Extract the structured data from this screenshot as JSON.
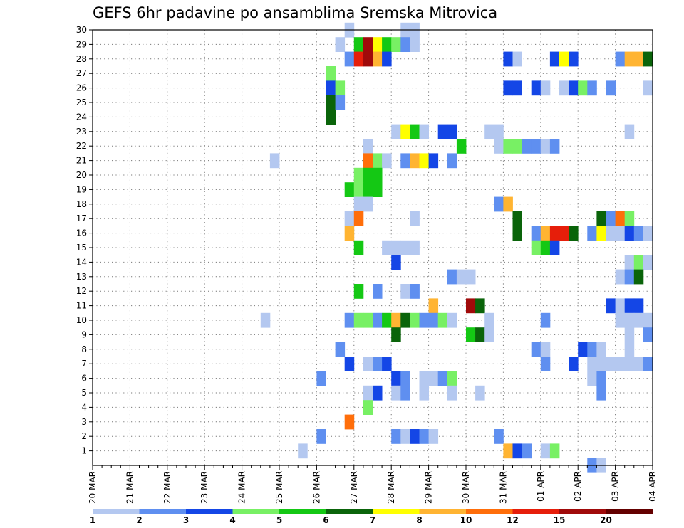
{
  "chart_data": {
    "type": "heatmap",
    "title": "GEFS 6hr padavine po ansamblima Sremska Mitrovica",
    "xlabel": "",
    "ylabel": "",
    "x_ticks": [
      "20 MAR",
      "21 MAR",
      "22 MAR",
      "23 MAR",
      "24 MAR",
      "25 MAR",
      "26 MAR",
      "27 MAR",
      "28 MAR",
      "29 MAR",
      "30 MAR",
      "31 MAR",
      "01 APR",
      "02 APR",
      "03 APR",
      "04 APR"
    ],
    "y_ticks": [
      "1",
      "2",
      "3",
      "4",
      "5",
      "6",
      "7",
      "8",
      "9",
      "10",
      "11",
      "12",
      "13",
      "14",
      "15",
      "16",
      "17",
      "18",
      "19",
      "20",
      "21",
      "22",
      "23",
      "24",
      "25",
      "26",
      "27",
      "28",
      "29",
      "30"
    ],
    "xlim_days": [
      0,
      15
    ],
    "ylim_members": [
      0,
      30
    ],
    "step_hours": 6,
    "grid": true,
    "legend": {
      "placement": "bottom",
      "labels": [
        "1",
        "2",
        "3",
        "4",
        "5",
        "6",
        "7",
        "8",
        "10",
        "12",
        "15",
        "20"
      ],
      "colors": [
        "#b4c8f0",
        "#5f8ff0",
        "#1446e6",
        "#78f064",
        "#14c814",
        "#0a640a",
        "#ffff00",
        "#ffb432",
        "#ff6e0a",
        "#e61e0a",
        "#a00a0a",
        "#640000"
      ]
    },
    "value_levels": [
      1,
      2,
      3,
      4,
      5,
      6,
      7,
      8,
      10,
      12,
      15,
      20
    ],
    "columns_per_day": 4,
    "cells": [
      {
        "member": 30,
        "step": 27,
        "value": 1.5
      },
      {
        "member": 30,
        "step": 33,
        "value": 1.5
      },
      {
        "member": 30,
        "step": 34,
        "value": 1.5
      },
      {
        "member": 29,
        "step": 26,
        "value": 1.5
      },
      {
        "member": 29,
        "step": 28,
        "value": 5.5
      },
      {
        "member": 29,
        "step": 29,
        "value": 16
      },
      {
        "member": 29,
        "step": 30,
        "value": 7.5
      },
      {
        "member": 29,
        "step": 31,
        "value": 5.5
      },
      {
        "member": 29,
        "step": 32,
        "value": 4.5
      },
      {
        "member": 29,
        "step": 33,
        "value": 2.5
      },
      {
        "member": 29,
        "step": 34,
        "value": 1.5
      },
      {
        "member": 28,
        "step": 27,
        "value": 2.5
      },
      {
        "member": 28,
        "step": 28,
        "value": 13
      },
      {
        "member": 28,
        "step": 29,
        "value": 16
      },
      {
        "member": 28,
        "step": 30,
        "value": 9
      },
      {
        "member": 28,
        "step": 31,
        "value": 3.5
      },
      {
        "member": 28,
        "step": 44,
        "value": 3.5
      },
      {
        "member": 28,
        "step": 45,
        "value": 1.5
      },
      {
        "member": 28,
        "step": 49,
        "value": 3.5
      },
      {
        "member": 28,
        "step": 50,
        "value": 7.5
      },
      {
        "member": 28,
        "step": 51,
        "value": 3.5
      },
      {
        "member": 28,
        "step": 56,
        "value": 2.5
      },
      {
        "member": 28,
        "step": 57,
        "value": 9
      },
      {
        "member": 28,
        "step": 58,
        "value": 9
      },
      {
        "member": 28,
        "step": 59,
        "value": 6.5
      },
      {
        "member": 27,
        "step": 25,
        "value": 4.5
      },
      {
        "member": 26,
        "step": 25,
        "value": 3.5
      },
      {
        "member": 26,
        "step": 26,
        "value": 4.5
      },
      {
        "member": 26,
        "step": 44,
        "value": 3.5
      },
      {
        "member": 26,
        "step": 45,
        "value": 3.5
      },
      {
        "member": 26,
        "step": 47,
        "value": 3.5
      },
      {
        "member": 26,
        "step": 48,
        "value": 1.5
      },
      {
        "member": 26,
        "step": 50,
        "value": 1.5
      },
      {
        "member": 26,
        "step": 51,
        "value": 3.5
      },
      {
        "member": 26,
        "step": 52,
        "value": 4.5
      },
      {
        "member": 26,
        "step": 53,
        "value": 2.5
      },
      {
        "member": 26,
        "step": 55,
        "value": 2.5
      },
      {
        "member": 26,
        "step": 59,
        "value": 1.5
      },
      {
        "member": 25,
        "step": 25,
        "value": 6.5
      },
      {
        "member": 25,
        "step": 26,
        "value": 2.5
      },
      {
        "member": 24,
        "step": 25,
        "value": 6.5
      },
      {
        "member": 23,
        "step": 32,
        "value": 1.5
      },
      {
        "member": 23,
        "step": 33,
        "value": 7.5
      },
      {
        "member": 23,
        "step": 34,
        "value": 5.5
      },
      {
        "member": 23,
        "step": 35,
        "value": 1.5
      },
      {
        "member": 23,
        "step": 37,
        "value": 3.5
      },
      {
        "member": 23,
        "step": 38,
        "value": 3.5
      },
      {
        "member": 23,
        "step": 42,
        "value": 1.5
      },
      {
        "member": 23,
        "step": 43,
        "value": 1.5
      },
      {
        "member": 23,
        "step": 57,
        "value": 1.5
      },
      {
        "member": 22,
        "step": 29,
        "value": 1.5
      },
      {
        "member": 22,
        "step": 39,
        "value": 5.5
      },
      {
        "member": 22,
        "step": 43,
        "value": 1.5
      },
      {
        "member": 22,
        "step": 44,
        "value": 4.5
      },
      {
        "member": 22,
        "step": 45,
        "value": 4.5
      },
      {
        "member": 22,
        "step": 46,
        "value": 2.5
      },
      {
        "member": 22,
        "step": 47,
        "value": 2.5
      },
      {
        "member": 22,
        "step": 48,
        "value": 1.5
      },
      {
        "member": 22,
        "step": 49,
        "value": 2.5
      },
      {
        "member": 21,
        "step": 19,
        "value": 1.5
      },
      {
        "member": 21,
        "step": 29,
        "value": 11
      },
      {
        "member": 21,
        "step": 30,
        "value": 4.5
      },
      {
        "member": 21,
        "step": 31,
        "value": 1.5
      },
      {
        "member": 21,
        "step": 33,
        "value": 2.5
      },
      {
        "member": 21,
        "step": 34,
        "value": 9
      },
      {
        "member": 21,
        "step": 35,
        "value": 7.5
      },
      {
        "member": 21,
        "step": 36,
        "value": 3.5
      },
      {
        "member": 21,
        "step": 38,
        "value": 2.5
      },
      {
        "member": 20,
        "step": 28,
        "value": 4.5
      },
      {
        "member": 20,
        "step": 29,
        "value": 5.5
      },
      {
        "member": 20,
        "step": 30,
        "value": 5.5
      },
      {
        "member": 19,
        "step": 27,
        "value": 5.5
      },
      {
        "member": 19,
        "step": 28,
        "value": 4.5
      },
      {
        "member": 19,
        "step": 29,
        "value": 5.5
      },
      {
        "member": 19,
        "step": 30,
        "value": 5.5
      },
      {
        "member": 18,
        "step": 28,
        "value": 1.5
      },
      {
        "member": 18,
        "step": 29,
        "value": 1.5
      },
      {
        "member": 18,
        "step": 43,
        "value": 2.5
      },
      {
        "member": 18,
        "step": 44,
        "value": 9
      },
      {
        "member": 17,
        "step": 27,
        "value": 1.5
      },
      {
        "member": 17,
        "step": 28,
        "value": 11
      },
      {
        "member": 17,
        "step": 34,
        "value": 1.5
      },
      {
        "member": 17,
        "step": 45,
        "value": 6.5
      },
      {
        "member": 17,
        "step": 54,
        "value": 6.5
      },
      {
        "member": 17,
        "step": 55,
        "value": 2.5
      },
      {
        "member": 17,
        "step": 56,
        "value": 11
      },
      {
        "member": 17,
        "step": 57,
        "value": 4.5
      },
      {
        "member": 16,
        "step": 27,
        "value": 9
      },
      {
        "member": 16,
        "step": 45,
        "value": 6.5
      },
      {
        "member": 16,
        "step": 47,
        "value": 2.5
      },
      {
        "member": 16,
        "step": 48,
        "value": 9
      },
      {
        "member": 16,
        "step": 49,
        "value": 13
      },
      {
        "member": 16,
        "step": 50,
        "value": 13
      },
      {
        "member": 16,
        "step": 51,
        "value": 6.5
      },
      {
        "member": 16,
        "step": 53,
        "value": 2.5
      },
      {
        "member": 16,
        "step": 54,
        "value": 7.5
      },
      {
        "member": 16,
        "step": 55,
        "value": 1.5
      },
      {
        "member": 16,
        "step": 56,
        "value": 1.5
      },
      {
        "member": 16,
        "step": 57,
        "value": 3.5
      },
      {
        "member": 16,
        "step": 58,
        "value": 2.5
      },
      {
        "member": 16,
        "step": 59,
        "value": 1.5
      },
      {
        "member": 15,
        "step": 28,
        "value": 5.5
      },
      {
        "member": 15,
        "step": 31,
        "value": 1.5
      },
      {
        "member": 15,
        "step": 32,
        "value": 1.5
      },
      {
        "member": 15,
        "step": 33,
        "value": 1.5
      },
      {
        "member": 15,
        "step": 34,
        "value": 1.5
      },
      {
        "member": 15,
        "step": 47,
        "value": 4.5
      },
      {
        "member": 15,
        "step": 48,
        "value": 5.5
      },
      {
        "member": 15,
        "step": 49,
        "value": 3.5
      },
      {
        "member": 14,
        "step": 32,
        "value": 3.5
      },
      {
        "member": 14,
        "step": 57,
        "value": 1.5
      },
      {
        "member": 14,
        "step": 58,
        "value": 4.5
      },
      {
        "member": 14,
        "step": 59,
        "value": 1.5
      },
      {
        "member": 13,
        "step": 38,
        "value": 2.5
      },
      {
        "member": 13,
        "step": 39,
        "value": 1.5
      },
      {
        "member": 13,
        "step": 40,
        "value": 1.5
      },
      {
        "member": 13,
        "step": 56,
        "value": 1.5
      },
      {
        "member": 13,
        "step": 57,
        "value": 2.5
      },
      {
        "member": 13,
        "step": 58,
        "value": 6.5
      },
      {
        "member": 12,
        "step": 28,
        "value": 5.5
      },
      {
        "member": 12,
        "step": 30,
        "value": 2.5
      },
      {
        "member": 12,
        "step": 33,
        "value": 1.5
      },
      {
        "member": 12,
        "step": 34,
        "value": 2.5
      },
      {
        "member": 11,
        "step": 36,
        "value": 9
      },
      {
        "member": 11,
        "step": 40,
        "value": 16
      },
      {
        "member": 11,
        "step": 41,
        "value": 6.5
      },
      {
        "member": 11,
        "step": 55,
        "value": 3.5
      },
      {
        "member": 11,
        "step": 56,
        "value": 1.5
      },
      {
        "member": 11,
        "step": 57,
        "value": 3.5
      },
      {
        "member": 11,
        "step": 58,
        "value": 3.5
      },
      {
        "member": 10,
        "step": 18,
        "value": 1.5
      },
      {
        "member": 10,
        "step": 27,
        "value": 2.5
      },
      {
        "member": 10,
        "step": 28,
        "value": 4.5
      },
      {
        "member": 10,
        "step": 29,
        "value": 4.5
      },
      {
        "member": 10,
        "step": 30,
        "value": 2.5
      },
      {
        "member": 10,
        "step": 31,
        "value": 5.5
      },
      {
        "member": 10,
        "step": 32,
        "value": 9
      },
      {
        "member": 10,
        "step": 33,
        "value": 6.5
      },
      {
        "member": 10,
        "step": 34,
        "value": 4.5
      },
      {
        "member": 10,
        "step": 35,
        "value": 2.5
      },
      {
        "member": 10,
        "step": 36,
        "value": 2.5
      },
      {
        "member": 10,
        "step": 37,
        "value": 4.5
      },
      {
        "member": 10,
        "step": 38,
        "value": 1.5
      },
      {
        "member": 10,
        "step": 42,
        "value": 1.5
      },
      {
        "member": 10,
        "step": 48,
        "value": 2.5
      },
      {
        "member": 10,
        "step": 56,
        "value": 1.5
      },
      {
        "member": 10,
        "step": 57,
        "value": 1.5
      },
      {
        "member": 10,
        "step": 58,
        "value": 1.5
      },
      {
        "member": 10,
        "step": 59,
        "value": 1.5
      },
      {
        "member": 9,
        "step": 32,
        "value": 6.5
      },
      {
        "member": 9,
        "step": 40,
        "value": 5.5
      },
      {
        "member": 9,
        "step": 41,
        "value": 6.5
      },
      {
        "member": 9,
        "step": 42,
        "value": 1.5
      },
      {
        "member": 9,
        "step": 57,
        "value": 1.5
      },
      {
        "member": 9,
        "step": 59,
        "value": 2.5
      },
      {
        "member": 8,
        "step": 26,
        "value": 2.5
      },
      {
        "member": 8,
        "step": 47,
        "value": 2.5
      },
      {
        "member": 8,
        "step": 48,
        "value": 1.5
      },
      {
        "member": 8,
        "step": 52,
        "value": 3.5
      },
      {
        "member": 8,
        "step": 53,
        "value": 2.5
      },
      {
        "member": 8,
        "step": 54,
        "value": 1.5
      },
      {
        "member": 8,
        "step": 57,
        "value": 1.5
      },
      {
        "member": 7,
        "step": 27,
        "value": 3.5
      },
      {
        "member": 7,
        "step": 29,
        "value": 1.5
      },
      {
        "member": 7,
        "step": 30,
        "value": 2.5
      },
      {
        "member": 7,
        "step": 31,
        "value": 3.5
      },
      {
        "member": 7,
        "step": 48,
        "value": 2.5
      },
      {
        "member": 7,
        "step": 51,
        "value": 3.5
      },
      {
        "member": 7,
        "step": 53,
        "value": 1.5
      },
      {
        "member": 7,
        "step": 54,
        "value": 1.5
      },
      {
        "member": 7,
        "step": 55,
        "value": 1.5
      },
      {
        "member": 7,
        "step": 56,
        "value": 1.5
      },
      {
        "member": 7,
        "step": 57,
        "value": 1.5
      },
      {
        "member": 7,
        "step": 58,
        "value": 1.5
      },
      {
        "member": 7,
        "step": 59,
        "value": 2.5
      },
      {
        "member": 6,
        "step": 24,
        "value": 2.5
      },
      {
        "member": 6,
        "step": 32,
        "value": 3.5
      },
      {
        "member": 6,
        "step": 33,
        "value": 2.5
      },
      {
        "member": 6,
        "step": 35,
        "value": 1.5
      },
      {
        "member": 6,
        "step": 36,
        "value": 1.5
      },
      {
        "member": 6,
        "step": 37,
        "value": 2.5
      },
      {
        "member": 6,
        "step": 38,
        "value": 4.5
      },
      {
        "member": 6,
        "step": 53,
        "value": 1.5
      },
      {
        "member": 6,
        "step": 54,
        "value": 2.5
      },
      {
        "member": 5,
        "step": 29,
        "value": 1.5
      },
      {
        "member": 5,
        "step": 30,
        "value": 3.5
      },
      {
        "member": 5,
        "step": 32,
        "value": 1.5
      },
      {
        "member": 5,
        "step": 33,
        "value": 2.5
      },
      {
        "member": 5,
        "step": 35,
        "value": 1.5
      },
      {
        "member": 5,
        "step": 38,
        "value": 1.5
      },
      {
        "member": 5,
        "step": 41,
        "value": 1.5
      },
      {
        "member": 5,
        "step": 54,
        "value": 2.5
      },
      {
        "member": 4,
        "step": 29,
        "value": 4.5
      },
      {
        "member": 3,
        "step": 27,
        "value": 11
      },
      {
        "member": 2,
        "step": 24,
        "value": 2.5
      },
      {
        "member": 2,
        "step": 32,
        "value": 2.5
      },
      {
        "member": 2,
        "step": 33,
        "value": 1.5
      },
      {
        "member": 2,
        "step": 34,
        "value": 3.5
      },
      {
        "member": 2,
        "step": 35,
        "value": 2.5
      },
      {
        "member": 2,
        "step": 36,
        "value": 1.5
      },
      {
        "member": 2,
        "step": 43,
        "value": 2.5
      },
      {
        "member": 1,
        "step": 22,
        "value": 1.5
      },
      {
        "member": 1,
        "step": 44,
        "value": 9
      },
      {
        "member": 1,
        "step": 45,
        "value": 3.5
      },
      {
        "member": 1,
        "step": 46,
        "value": 2.5
      },
      {
        "member": 1,
        "step": 48,
        "value": 1.5
      },
      {
        "member": 1,
        "step": 49,
        "value": 4.5
      },
      {
        "member": 0,
        "step": 53,
        "value": 2.5
      },
      {
        "member": 0,
        "step": 54,
        "value": 1.5
      }
    ]
  }
}
